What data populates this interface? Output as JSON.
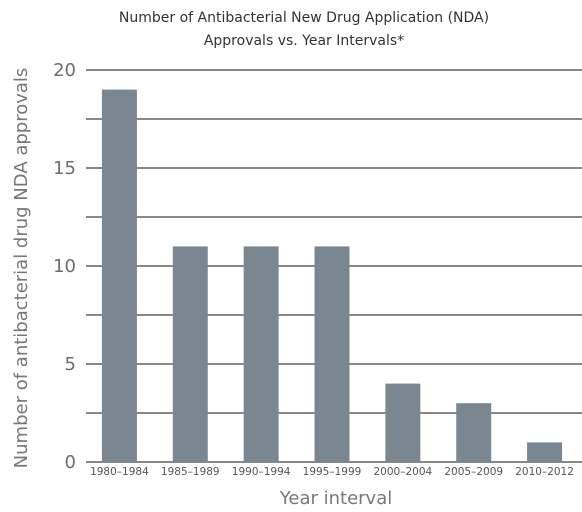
{
  "chart_data": {
    "type": "bar",
    "title": "Number of Antibacterial New Drug Application (NDA) Approvals vs. Year Intervals*",
    "title_lines": [
      "Number of Antibacterial New Drug Application (NDA)",
      "Approvals vs. Year Intervals*"
    ],
    "xlabel": "Year interval",
    "ylabel": "Number of antibacterial drug NDA approvals",
    "categories": [
      "1980–1984",
      "1985–1989",
      "1990–1994",
      "1995–1999",
      "2000–2004",
      "2005–2009",
      "2010–2012"
    ],
    "values": [
      19,
      11,
      11,
      11,
      4,
      3,
      1
    ],
    "ylim": [
      0,
      20
    ],
    "yticks": [
      0,
      5,
      10,
      15,
      20
    ],
    "grid": true,
    "bar_color": "#7a8690",
    "grid_color": "#888888"
  }
}
